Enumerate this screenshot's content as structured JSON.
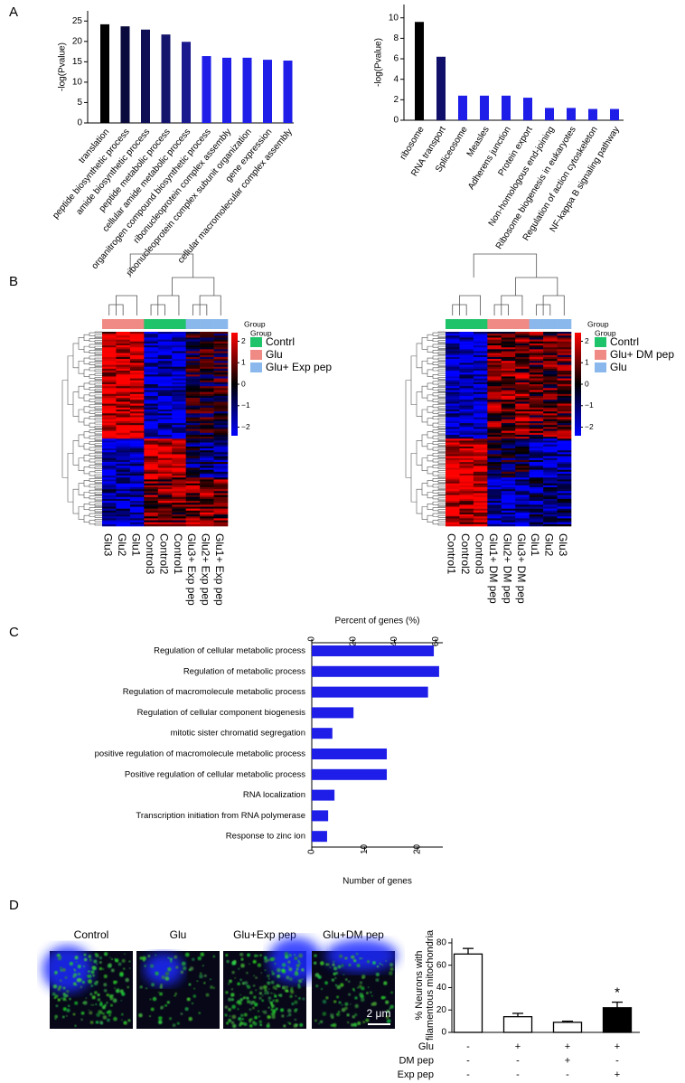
{
  "panels": [
    "A",
    "B",
    "C",
    "D"
  ],
  "chart_data": [
    {
      "type": "bar",
      "ylabel": "-log(Pvalue)",
      "categories": [
        "translation",
        "peptide biosynthetic process",
        "amide biosynthetic process",
        "peptide metabolic process",
        "cellular amide metabolic process",
        "organitrogen compound biosynthetic process",
        "ribonucleoprotein complex assembly",
        "ribonucleoprotein complex subunit organization",
        "gene expression",
        "cellular macromolecular complex assembly"
      ],
      "values": [
        24.2,
        23.7,
        22.9,
        21.7,
        19.9,
        16.4,
        16.0,
        16.0,
        15.5,
        15.3
      ],
      "colors": [
        "#000000",
        "#0a0a3c",
        "#0f0f55",
        "#14146c",
        "#1a1a8e",
        "#1e1ee8",
        "#1e1ee8",
        "#1e1ee8",
        "#1e1ee8",
        "#1e1ee8"
      ],
      "ylim": [
        0,
        27.5
      ],
      "yticks": [
        0,
        5,
        10,
        15,
        20,
        25
      ]
    },
    {
      "type": "bar",
      "ylabel": "-log(Pvalue)",
      "categories": [
        "ribosome",
        "RNA transport",
        "Spliceosome",
        "Measles",
        "Adherens junction",
        "Protein export",
        "Non-homologous end-joining",
        "Ribosome biogenesis in eukaryotes",
        "Regulation of action cytoskeleton",
        "NF-kappa B signaling pathway"
      ],
      "values": [
        9.6,
        6.2,
        2.4,
        2.4,
        2.4,
        2.2,
        1.2,
        1.2,
        1.1,
        1.1
      ],
      "colors": [
        "#000000",
        "#10106a",
        "#1e1ee8",
        "#1e1ee8",
        "#1e1ee8",
        "#1e1ee8",
        "#1e1ee8",
        "#1e1ee8",
        "#1e1ee8",
        "#1e1ee8"
      ],
      "ylim": [
        0,
        11.3
      ],
      "yticks": [
        0,
        2,
        4,
        6,
        8,
        10
      ]
    },
    {
      "type": "barh",
      "xlabel": "Number of genes",
      "x2label": "Percent of genes (%)",
      "categories": [
        "Regulation of cellular metabolic process",
        "Regulation of metabolic process",
        "Regulation of macromolecule metabolic process",
        "Regulation of cellular component biogenesis",
        "mitotic sister chromatid segregation",
        "positive regulation of macromolecule metabolic process",
        "Positive regulation of cellular metabolic process",
        "RNA localization",
        "Transcription initiation from RNA polymerase",
        "Response to zinc ion"
      ],
      "values": [
        23.1,
        24.1,
        22,
        7.9,
        3.9,
        14.2,
        14.2,
        4.3,
        3.1,
        2.9
      ],
      "color": "#1e1ee8",
      "xlim": [
        0,
        24.8
      ],
      "xticks": [
        0,
        10,
        20
      ],
      "x2lim": [
        0,
        63.4
      ],
      "x2ticks": [
        0,
        20,
        40,
        60
      ]
    },
    {
      "type": "bar",
      "ylabel": [
        "% Neurons with",
        "filamentous mitochondria"
      ],
      "values": [
        70,
        14,
        9,
        22
      ],
      "errors": [
        5,
        3,
        1,
        5
      ],
      "colors": [
        "#ffffff",
        "#ffffff",
        "#ffffff",
        "#000000"
      ],
      "annotation": "*",
      "ylim": [
        0,
        84
      ],
      "yticks": [
        0,
        20,
        40,
        60,
        80
      ],
      "conditions": [
        {
          "label": "Glu",
          "signs": [
            "-",
            "+",
            "+",
            "+"
          ]
        },
        {
          "label": "DM pep",
          "signs": [
            "-",
            "-",
            "+",
            "-"
          ]
        },
        {
          "label": "Exp pep",
          "signs": [
            "-",
            "-",
            "-",
            "+"
          ]
        }
      ]
    }
  ],
  "heatmaps": [
    {
      "columns": [
        "Glu3",
        "Glu2",
        "Glu1",
        "Control3",
        "Control2",
        "Control1",
        "Glu3+ Exp pep",
        "Glu2+ Exp pep",
        "Glu1+ Exp pep"
      ],
      "groups": [
        {
          "name": "Contrl",
          "color": "#1fc46a"
        },
        {
          "name": "Glu",
          "color": "#f08a84"
        },
        {
          "name": "Glu+ Exp pep",
          "color": "#8ab8ec"
        }
      ],
      "column_groups": [
        1,
        1,
        1,
        0,
        0,
        0,
        2,
        2,
        2
      ],
      "group_label": "Group",
      "colorbar_lim": [
        -2.4,
        2.4
      ],
      "colorbar_ticks": [
        2,
        1,
        0,
        {
          "value": -1,
          "label": "−1"
        },
        {
          "value": -2,
          "label": "−2"
        }
      ]
    },
    {
      "columns": [
        "Control1",
        "Control2",
        "Control3",
        "Glu1+ DM pep",
        "Glu2+ DM pep",
        "Glu3+ DM pep",
        "Glu1",
        "Glu2",
        "Glu3"
      ],
      "groups": [
        {
          "name": "Contrl",
          "color": "#1fc46a"
        },
        {
          "name": "Glu+ DM pep",
          "color": "#f08a84"
        },
        {
          "name": "Glu",
          "color": "#8ab8ec"
        }
      ],
      "column_groups": [
        0,
        0,
        0,
        1,
        1,
        1,
        2,
        2,
        2
      ],
      "group_label": "Group",
      "colorbar_lim": [
        -2.4,
        2.4
      ],
      "colorbar_ticks": [
        2,
        1,
        0,
        {
          "value": -1,
          "label": "−1"
        },
        {
          "value": -2,
          "label": "−2"
        }
      ]
    }
  ],
  "micrographs": {
    "labels": [
      "Control",
      "Glu",
      "Glu+Exp pep",
      "Glu+DM pep"
    ],
    "scale_bar": "2 μm"
  }
}
